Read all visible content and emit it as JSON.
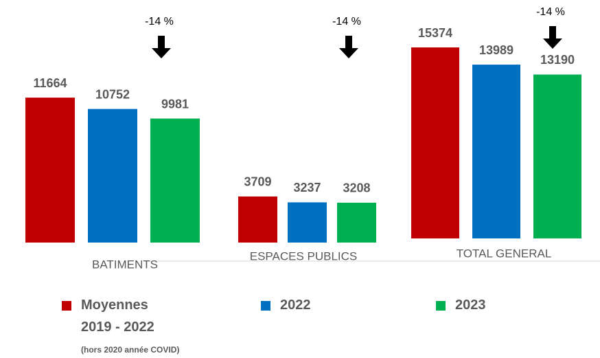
{
  "chart_data": {
    "type": "bar",
    "categories": [
      "BATIMENTS",
      "ESPACES PUBLICS",
      "TOTAL GENERAL"
    ],
    "series": [
      {
        "name": "Moyennes 2019 - 2022",
        "color": "#c00000",
        "values": [
          11664,
          3709,
          15374
        ]
      },
      {
        "name": "2022",
        "color": "#0070c0",
        "values": [
          10752,
          3237,
          13989
        ]
      },
      {
        "name": "2023",
        "color": "#00b050",
        "values": [
          9981,
          3208,
          13190
        ]
      }
    ],
    "legend_note": "(hors 2020 année COVID)",
    "annotations": [
      {
        "text": "-14 %",
        "category": "BATIMENTS"
      },
      {
        "text": "-14 %",
        "category": "ESPACES PUBLICS"
      },
      {
        "text": "-14 %",
        "category": "TOTAL GENERAL"
      }
    ]
  }
}
